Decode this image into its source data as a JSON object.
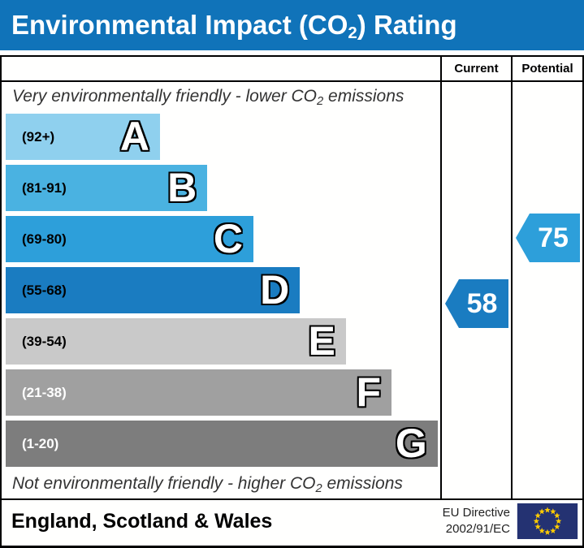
{
  "title": {
    "prefix": "Environmental Impact (CO",
    "sub": "2",
    "suffix": ") Rating"
  },
  "table": {
    "columns": {
      "current": "Current",
      "potential": "Potential"
    },
    "top_note": {
      "prefix": "Very environmentally friendly - lower CO",
      "sub": "2",
      "suffix": " emissions"
    },
    "bottom_note": {
      "prefix": "Not environmentally friendly - higher CO",
      "sub": "2",
      "suffix": " emissions"
    }
  },
  "chart_data": {
    "type": "bar",
    "title": "Environmental Impact (CO2) Rating",
    "bands": [
      {
        "letter": "A",
        "range": "(92+)",
        "min": 92,
        "max": 100,
        "color": "#8fd0ee",
        "range_text_color": "#000000",
        "width_pct": 35.5
      },
      {
        "letter": "B",
        "range": "(81-91)",
        "min": 81,
        "max": 91,
        "color": "#4ab2e1",
        "range_text_color": "#000000",
        "width_pct": 46.4
      },
      {
        "letter": "C",
        "range": "(69-80)",
        "min": 69,
        "max": 80,
        "color": "#2d9fda",
        "range_text_color": "#000000",
        "width_pct": 57.0
      },
      {
        "letter": "D",
        "range": "(55-68)",
        "min": 55,
        "max": 68,
        "color": "#1a7cc1",
        "range_text_color": "#000000",
        "width_pct": 67.7
      },
      {
        "letter": "E",
        "range": "(39-54)",
        "min": 39,
        "max": 54,
        "color": "#c9c9c9",
        "range_text_color": "#000000",
        "width_pct": 78.3
      },
      {
        "letter": "F",
        "range": "(21-38)",
        "min": 21,
        "max": 38,
        "color": "#a0a0a0",
        "range_text_color": "#ffffff",
        "width_pct": 88.8
      },
      {
        "letter": "G",
        "range": "(1-20)",
        "min": 1,
        "max": 20,
        "color": "#7d7d7d",
        "range_text_color": "#ffffff",
        "width_pct": 99.4
      }
    ],
    "current": {
      "value": "58",
      "band": "D",
      "color": "#1a7cc1"
    },
    "potential": {
      "value": "75",
      "band": "C",
      "color": "#2d9fda"
    },
    "header_color": "#1073b9"
  },
  "footer": {
    "region": "England, Scotland & Wales",
    "directive_line1": "EU Directive",
    "directive_line2": "2002/91/EC",
    "eu_flag": {
      "background": "#243272",
      "star_color": "#ffcc00",
      "star_count": 12
    }
  }
}
